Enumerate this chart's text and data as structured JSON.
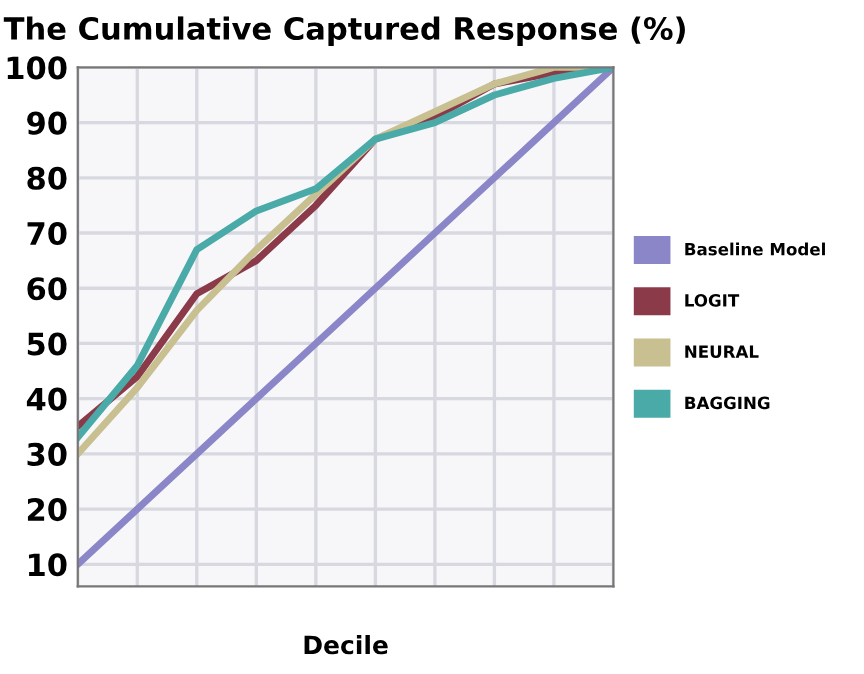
{
  "chart_data": {
    "type": "line",
    "title": "The Cumulative Captured Response (%)",
    "xlabel": "Decile",
    "categories": [
      null,
      null,
      null,
      null,
      null,
      null,
      null,
      null,
      null,
      null
    ],
    "series": [
      {
        "name": "Baseline Model",
        "color": "#8a86c8",
        "values": [
          10,
          20,
          30,
          40,
          50,
          60,
          70,
          80,
          90,
          100
        ]
      },
      {
        "name": "LOGIT",
        "color": "#8b3a4a",
        "values": [
          35,
          44,
          59,
          65,
          75,
          87,
          91,
          97,
          99,
          100
        ]
      },
      {
        "name": "NEURAL",
        "color": "#c8c090",
        "values": [
          30,
          42,
          56,
          67,
          77,
          87,
          92,
          97,
          100,
          100
        ]
      },
      {
        "name": "BAGGING",
        "color": "#4aaaa8",
        "values": [
          33,
          46,
          67,
          74,
          78,
          87,
          90,
          95,
          98,
          100
        ]
      }
    ],
    "ylim": [
      6,
      100
    ],
    "yticks": [
      10,
      20,
      30,
      40,
      50,
      60,
      70,
      80,
      90,
      100
    ],
    "grid": true,
    "legend": "right",
    "marker": "none",
    "line_style": "solid"
  }
}
